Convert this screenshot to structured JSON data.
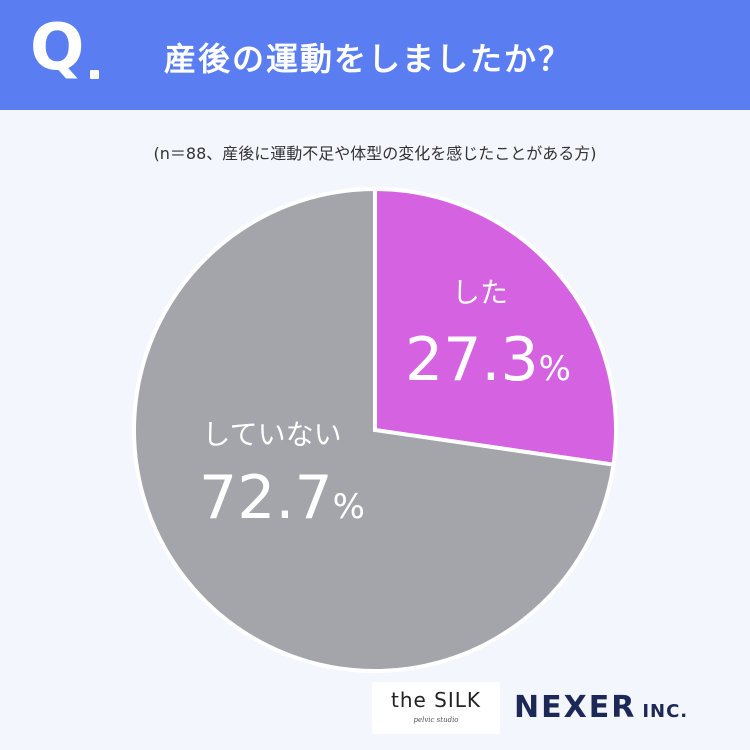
{
  "header": {
    "q_label": "Q",
    "title": "産後の運動をしましたか？"
  },
  "subtitle": "(n＝88、産後に運動不足や体型の変化を感じたことがある方)",
  "chart_data": {
    "type": "pie",
    "slices": [
      {
        "label": "した",
        "value": 27.3,
        "value_text": "27.3",
        "unit": "%",
        "color": "#d562e0"
      },
      {
        "label": "していない",
        "value": 72.7,
        "value_text": "72.7",
        "unit": "%",
        "color": "#a4a5aa"
      }
    ],
    "start_angle": "12 o'clock",
    "direction": "clockwise",
    "highlighted_slice": "した"
  },
  "footer": {
    "silk_logo": "the SILK",
    "silk_tagline": "pelvic studio",
    "nexer_logo": "NEXER",
    "nexer_suffix": "INC."
  },
  "colors": {
    "header_bg": "#5a7ef2",
    "page_bg": "#f4f6fd",
    "nexer_navy": "#1c2957"
  }
}
